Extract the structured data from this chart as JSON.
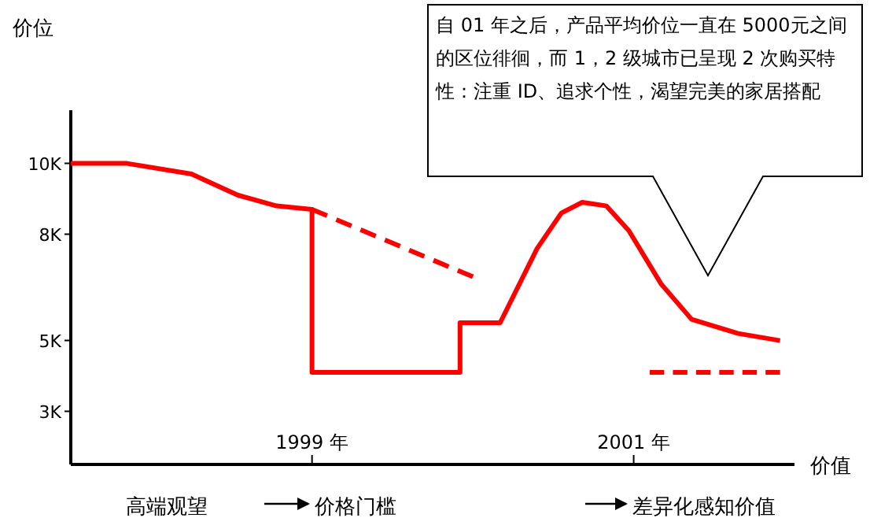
{
  "chart_data": {
    "type": "line",
    "ylabel": "价位",
    "xlabel": "价值",
    "xlim": [
      1997.5,
      2002
    ],
    "xticks": [
      {
        "value": 1999,
        "label": "1999 年"
      },
      {
        "value": 2001,
        "label": "2001 年"
      }
    ],
    "ylim": [
      1500,
      11500
    ],
    "yticks": [
      {
        "value": 3000,
        "label": "3K"
      },
      {
        "value": 5000,
        "label": "5K"
      },
      {
        "value": 8000,
        "label": "8K"
      },
      {
        "value": 10000,
        "label": "10K"
      }
    ],
    "grid": false,
    "series": [
      {
        "color": "#ff0000",
        "line_style": "solid",
        "x": [
          1997.5,
          1997.85,
          1998.25,
          1998.54,
          1998.78,
          1999,
          1999,
          1999.92,
          1999.92,
          2000.17,
          2000.4,
          2000.55,
          2000.68,
          2000.83,
          2000.97,
          2001.17,
          2001.36,
          2001.65,
          2001.91
        ],
        "values": [
          10000,
          10000,
          9700,
          9100,
          8800,
          8700,
          4100,
          4100,
          5500,
          5500,
          7600,
          8600,
          8900,
          8800,
          8100,
          6600,
          5600,
          5200,
          5000
        ]
      },
      {
        "color": "#ff0000",
        "line_style": "dashed",
        "x": [
          1999,
          2000.0
        ],
        "values": [
          8700,
          6800
        ]
      },
      {
        "color": "#ff0000",
        "line_style": "dashed",
        "x": [
          2001.1,
          2001.91
        ],
        "values": [
          4100,
          4100
        ]
      }
    ],
    "annotations": [
      "自 01 年之后，产品平均价位一直在 5000元之间的区位徘徊，而 1，2 级城市已呈现 2 次购买特性：注重 ID、追求个性，渴望完美的家居搭配",
      "高端观望",
      "价格门槛",
      "差异化感知价值"
    ]
  }
}
